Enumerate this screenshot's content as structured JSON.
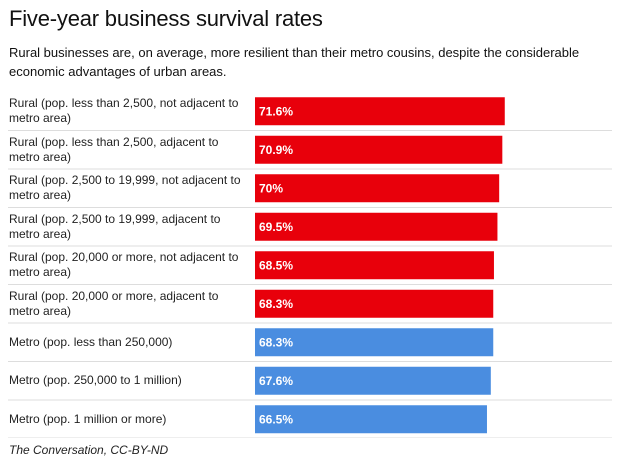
{
  "title": "Five-year business survival rates",
  "subtitle": "Rural businesses are, on average, more resilient than their metro cousins, despite the considerable economic advantages of urban areas.",
  "source": "The Conversation, CC-BY-ND",
  "colors": {
    "rural": "#e8000b",
    "metro": "#4a8de0"
  },
  "chart_data": {
    "type": "bar",
    "orientation": "horizontal",
    "categories": [
      "Rural (pop. less than 2,500, not adjacent to metro area)",
      "Rural (pop. less than 2,500, adjacent to metro area)",
      "Rural (pop. 2,500 to 19,999, not adjacent to metro area)",
      "Rural (pop. 2,500 to 19,999, adjacent to metro area)",
      "Rural (pop. 20,000 or more, not adjacent to metro area)",
      "Rural (pop. 20,000 or more, adjacent to metro area)",
      "Metro (pop. less than 250,000)",
      "Metro (pop. 250,000 to 1 million)",
      "Metro (pop. 1 million or more)"
    ],
    "values": [
      71.6,
      70.9,
      70.0,
      69.5,
      68.5,
      68.3,
      68.3,
      67.6,
      66.5
    ],
    "value_labels": [
      "71.6%",
      "70.9%",
      "70%",
      "69.5%",
      "68.5%",
      "68.3%",
      "68.3%",
      "67.6%",
      "66.5%"
    ],
    "groups": [
      "rural",
      "rural",
      "rural",
      "rural",
      "rural",
      "rural",
      "metro",
      "metro",
      "metro"
    ],
    "xlim": [
      0,
      86
    ],
    "grid": false,
    "legend": "none"
  }
}
